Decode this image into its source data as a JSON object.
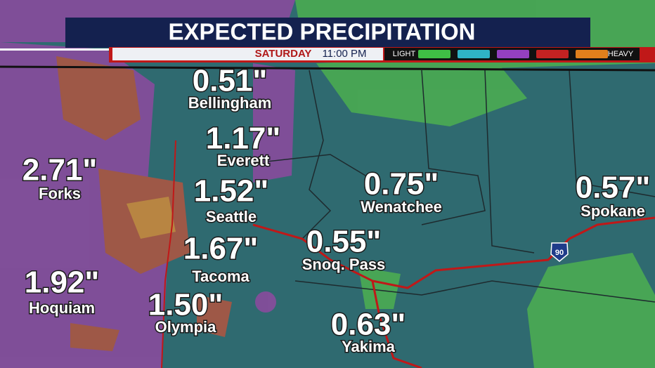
{
  "header": {
    "title": "EXPECTED PRECIPITATION",
    "day": "SATURDAY",
    "time": "11:00 PM"
  },
  "legend": {
    "low_label": "LIGHT",
    "high_label": "HEAVY",
    "colors": [
      "#3fbf45",
      "#2fb3c6",
      "#9440c0",
      "#c42222",
      "#e0801c"
    ]
  },
  "locations": [
    {
      "amount": "0.51\"",
      "name": "Bellingham"
    },
    {
      "amount": "1.17\"",
      "name": "Everett"
    },
    {
      "amount": "2.71\"",
      "name": "Forks"
    },
    {
      "amount": "1.52\"",
      "name": "Seattle"
    },
    {
      "amount": "0.75\"",
      "name": "Wenatchee"
    },
    {
      "amount": "0.57\"",
      "name": "Spokane"
    },
    {
      "amount": "1.67\"",
      "name": "Tacoma"
    },
    {
      "amount": "0.55\"",
      "name": "Snoq. Pass"
    },
    {
      "amount": "1.92\"",
      "name": "Hoquiam"
    },
    {
      "amount": "1.50\"",
      "name": "Olympia"
    },
    {
      "amount": "0.63\"",
      "name": "Yakima"
    }
  ],
  "highway": "90"
}
